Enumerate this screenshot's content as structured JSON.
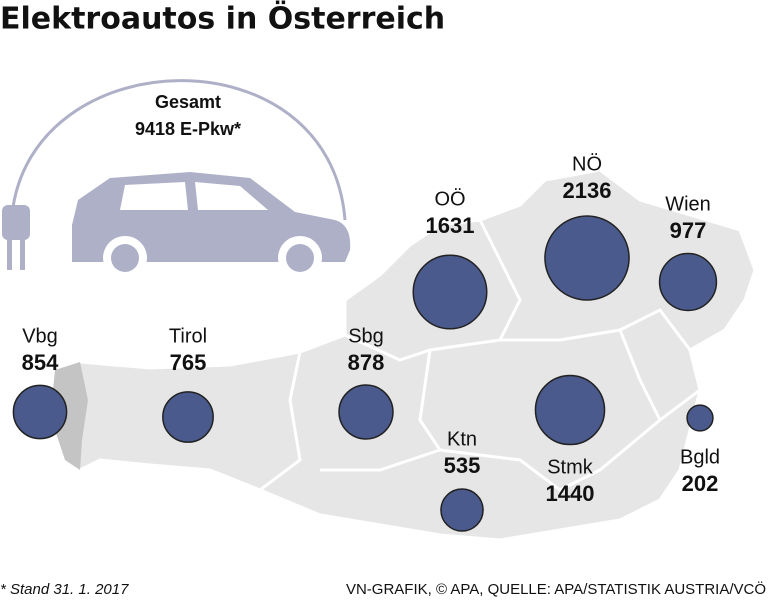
{
  "title": "Elektroautos in Österreich",
  "total": {
    "label": "Gesamt",
    "value": 9418,
    "unit": "E-Pkw*"
  },
  "regions": [
    {
      "name": "Vbg",
      "value": 854
    },
    {
      "name": "Tirol",
      "value": 765
    },
    {
      "name": "Sbg",
      "value": 878
    },
    {
      "name": "OÖ",
      "value": 1631
    },
    {
      "name": "NÖ",
      "value": 2136
    },
    {
      "name": "Wien",
      "value": 977
    },
    {
      "name": "Ktn",
      "value": 535
    },
    {
      "name": "Stmk",
      "value": 1440
    },
    {
      "name": "Bgld",
      "value": 202
    }
  ],
  "footnote": "* Stand 31. 1. 2017",
  "source": "VN-GRAFIK, © APA, QUELLE: APA/STATISTIK AUSTRIA/VCÖ"
}
